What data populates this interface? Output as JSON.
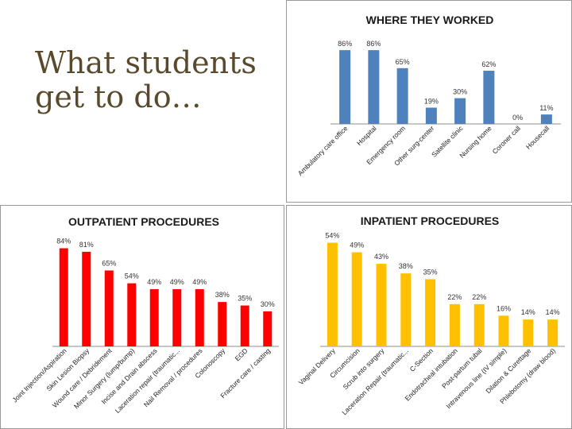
{
  "slide": {
    "title": "What students get to do…"
  },
  "chart_data": [
    {
      "id": "where",
      "type": "bar",
      "title": "WHERE THEY WORKED",
      "color": "#4f81bd",
      "categories": [
        "Ambulatory care office",
        "Hospital",
        "Emergency room",
        "Other surg-center",
        "Satellite clinic",
        "Nursing home",
        "Coroner call",
        "Housecall"
      ],
      "values": [
        86,
        86,
        65,
        19,
        30,
        62,
        0,
        11
      ],
      "labels": [
        "86%",
        "86%",
        "65%",
        "19%",
        "30%",
        "62%",
        "0%",
        "11%"
      ],
      "ylim": [
        0,
        100
      ]
    },
    {
      "id": "outpatient",
      "type": "bar",
      "title": "OUTPATIENT PROCEDURES",
      "color": "#ff0000",
      "categories": [
        "Joint Injection/Aspiration",
        "Skin Lesion Biopsy",
        "Wound care / Debridement",
        "Minor Surgery (lump/bump)",
        "Incise and Drain abscess",
        "Laceration repair (traumatic...",
        "Nail Removal / procedures",
        "Colonoscopy",
        "EGD",
        "Fracture care / casting"
      ],
      "values": [
        84,
        81,
        65,
        54,
        49,
        49,
        49,
        38,
        35,
        30
      ],
      "labels": [
        "84%",
        "81%",
        "65%",
        "54%",
        "49%",
        "49%",
        "49%",
        "38%",
        "35%",
        "30%"
      ],
      "ylim": [
        0,
        100
      ]
    },
    {
      "id": "inpatient",
      "type": "bar",
      "title": "INPATIENT PROCEDURES",
      "color": "#ffc000",
      "categories": [
        "Vaginal Delivery",
        "Circumcision",
        "Scrub into surgery",
        "Laceration Repair (traumatic...",
        "C-Section",
        "Endotracheal intubation",
        "Post-partum tubal",
        "Intravenous line (IV simple)",
        "Dilation & Curettage",
        "Phlebotomy (draw blood)"
      ],
      "values": [
        54,
        49,
        43,
        38,
        35,
        22,
        22,
        16,
        14,
        14
      ],
      "labels": [
        "54%",
        "49%",
        "43%",
        "38%",
        "35%",
        "22%",
        "22%",
        "16%",
        "14%",
        "14%"
      ],
      "ylim": [
        0,
        60
      ]
    }
  ]
}
